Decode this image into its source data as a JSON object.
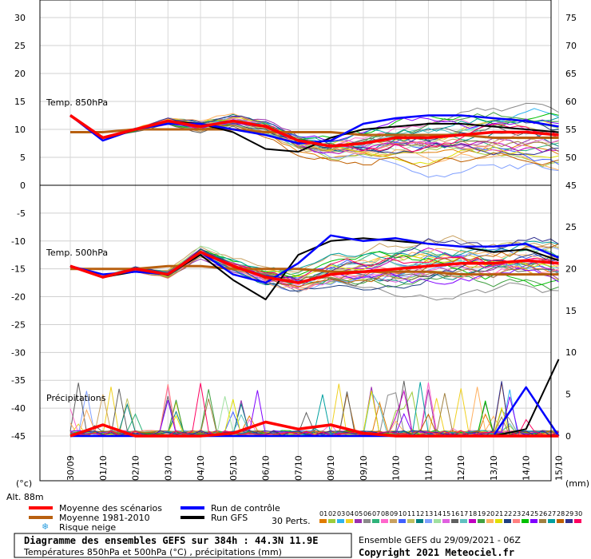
{
  "labels": {
    "t850": "Temp. 850hPa",
    "t500": "Temp. 500hPa",
    "precip": "Précipitations",
    "unit_left": "(°c)",
    "unit_right": "(mm)",
    "altitude": "Alt. 88m"
  },
  "legend": {
    "mean": "Moyenne des scénarios",
    "clim": "Moyenne 1981-2010",
    "control": "Run de contrôle",
    "gfs": "Run GFS",
    "snow": "Risque neige",
    "perts_label": "30 Perts.",
    "perts": [
      "01",
      "02",
      "03",
      "04",
      "05",
      "06",
      "07",
      "08",
      "09",
      "10",
      "11",
      "12",
      "13",
      "14",
      "15",
      "16",
      "17",
      "18",
      "19",
      "20",
      "21",
      "22",
      "23",
      "24",
      "25",
      "26",
      "27",
      "28",
      "29",
      "30"
    ],
    "pert_colors": [
      "#e07b00",
      "#9ccc3c",
      "#2db3f0",
      "#f0d020",
      "#9a2fb0",
      "#8a8a8a",
      "#2fb37a",
      "#ff66cc",
      "#c8a060",
      "#4060ff",
      "#c0c060",
      "#008080",
      "#80a0ff",
      "#a0e0a0",
      "#e060e0",
      "#606060",
      "#60c0c0",
      "#c000c0",
      "#40a040",
      "#ffb060",
      "#e0e000",
      "#204080",
      "#ff8080",
      "#00c000",
      "#8000ff",
      "#a08040",
      "#00a0a0",
      "#c06000",
      "#303090",
      "#ff0060"
    ],
    "colors": {
      "mean": "#ff0000",
      "clim": "#b86010",
      "control": "#0000ff",
      "gfs": "#000000"
    }
  },
  "footer": {
    "title": "Diagramme des ensembles GEFS sur 384h : 44.3N 11.9E",
    "subtitle": "Températures 850hPa et 500hPa (°C) , précipitations (mm)",
    "ensemble": "Ensemble GEFS du 29/09/2021 - 06Z",
    "copyright": "Copyright 2021 Meteociel.fr"
  },
  "chart_data": [
    {
      "type": "line",
      "title": "Temp. 850hPa",
      "x": [
        "30/09",
        "01/10",
        "02/10",
        "03/10",
        "04/10",
        "05/10",
        "06/10",
        "07/10",
        "08/10",
        "09/10",
        "10/10",
        "11/10",
        "12/10",
        "13/10",
        "14/10",
        "15/10"
      ],
      "ylim": [
        0,
        30
      ],
      "ylabel": "(°c)",
      "y_right_ticks": [
        45,
        50,
        55,
        60,
        65,
        70,
        75
      ],
      "series": [
        {
          "name": "Moyenne des scénarios",
          "values": [
            12.5,
            8.5,
            10.0,
            11.5,
            10.5,
            11.5,
            10.5,
            8.0,
            7.0,
            7.5,
            8.5,
            8.5,
            9.0,
            9.5,
            9.5,
            9.0
          ]
        },
        {
          "name": "Moyenne 1981-2010",
          "values": [
            9.5,
            9.5,
            10.0,
            10.0,
            10.0,
            10.0,
            9.5,
            9.5,
            9.5,
            9.0,
            9.0,
            9.0,
            9.0,
            8.5,
            8.5,
            8.5
          ]
        },
        {
          "name": "Run de contrôle",
          "values": [
            12.5,
            8.0,
            10.0,
            11.0,
            11.0,
            10.0,
            9.0,
            7.5,
            8.0,
            11.0,
            12.0,
            12.5,
            12.5,
            12.0,
            11.5,
            10.5
          ]
        },
        {
          "name": "Run GFS",
          "values": [
            12.5,
            8.5,
            10.0,
            11.5,
            11.0,
            9.5,
            6.5,
            6.0,
            8.5,
            10.0,
            10.5,
            11.0,
            11.0,
            10.5,
            10.0,
            9.5
          ]
        }
      ]
    },
    {
      "type": "line",
      "title": "Temp. 500hPa",
      "x": [
        "30/09",
        "01/10",
        "02/10",
        "03/10",
        "04/10",
        "05/10",
        "06/10",
        "07/10",
        "08/10",
        "09/10",
        "10/10",
        "11/10",
        "12/10",
        "13/10",
        "14/10",
        "15/10"
      ],
      "ylim": [
        -45,
        0
      ],
      "series": [
        {
          "name": "Moyenne des scénarios",
          "values": [
            -14.5,
            -16.5,
            -15.0,
            -16.0,
            -12.0,
            -14.5,
            -16.5,
            -17.5,
            -16.0,
            -15.5,
            -15.0,
            -14.5,
            -14.0,
            -14.0,
            -13.5,
            -14.0
          ]
        },
        {
          "name": "Moyenne 1981-2010",
          "values": [
            -15.0,
            -15.0,
            -15.0,
            -14.5,
            -14.5,
            -15.0,
            -15.0,
            -15.0,
            -15.5,
            -15.5,
            -15.5,
            -15.5,
            -16.0,
            -16.0,
            -16.0,
            -16.0
          ]
        },
        {
          "name": "Run de contrôle",
          "values": [
            -14.5,
            -16.0,
            -15.5,
            -16.0,
            -12.0,
            -16.0,
            -17.5,
            -14.0,
            -9.0,
            -10.0,
            -9.5,
            -10.5,
            -11.0,
            -11.0,
            -10.5,
            -13.0
          ]
        },
        {
          "name": "Run GFS",
          "values": [
            -14.5,
            -16.5,
            -15.5,
            -16.0,
            -12.5,
            -17.0,
            -20.5,
            -12.5,
            -10.0,
            -9.5,
            -10.0,
            -10.5,
            -11.0,
            -12.0,
            -11.5,
            -13.5
          ]
        }
      ]
    },
    {
      "type": "line",
      "title": "Précipitations",
      "x": [
        "30/09",
        "01/10",
        "02/10",
        "03/10",
        "04/10",
        "05/10",
        "06/10",
        "07/10",
        "08/10",
        "09/10",
        "10/10",
        "11/10",
        "12/10",
        "13/10",
        "14/10",
        "15/10"
      ],
      "ylim": [
        0,
        30
      ],
      "ylabel": "(mm)",
      "series": [
        {
          "name": "Moyenne des scénarios",
          "values": [
            0,
            0.8,
            0,
            0,
            0,
            0.2,
            1.0,
            0.5,
            0.8,
            0.2,
            0,
            0,
            0,
            0,
            0,
            0
          ]
        },
        {
          "name": "Run de contrôle",
          "values": [
            0,
            0,
            0,
            0,
            0,
            0,
            0,
            0,
            0,
            0,
            0,
            0,
            0,
            0,
            3.5,
            0
          ]
        },
        {
          "name": "Run GFS",
          "values": [
            0,
            0,
            0,
            0,
            0,
            0,
            0,
            0,
            0,
            0,
            0,
            0,
            0,
            0,
            0.5,
            5.5
          ]
        }
      ]
    }
  ]
}
